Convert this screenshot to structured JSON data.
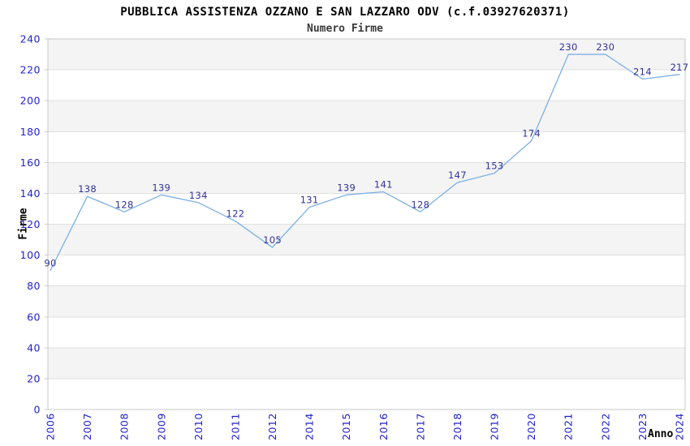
{
  "chart_data": {
    "type": "line",
    "title": "PUBBLICA ASSISTENZA OZZANO E SAN LAZZARO ODV (c.f.03927620371)",
    "subtitle": "Numero Firme",
    "xlabel": "Anno",
    "ylabel": "Firme",
    "categories": [
      "2006",
      "2007",
      "2008",
      "2009",
      "2010",
      "2011",
      "2012",
      "2014",
      "2015",
      "2016",
      "2017",
      "2018",
      "2019",
      "2020",
      "2021",
      "2022",
      "2023",
      "2024"
    ],
    "values": [
      90,
      138,
      128,
      139,
      134,
      122,
      105,
      131,
      139,
      141,
      128,
      147,
      153,
      174,
      230,
      230,
      214,
      217
    ],
    "ylim": [
      0,
      240
    ],
    "ytick_step": 20,
    "yticks": [
      0,
      20,
      40,
      60,
      80,
      100,
      120,
      140,
      160,
      180,
      200,
      220,
      240
    ],
    "grid": true,
    "legend_position": "none",
    "data_labels_visible": true,
    "colors": {
      "line": "#7cb0e4",
      "tick_label": "#2222cc",
      "data_label": "#333399",
      "band_fill": "#f4f4f4",
      "grid_line": "#e0e0e0",
      "plot_border": "#c9c9c9",
      "title_text": "#000000",
      "subtitle_text": "#3a3a3a"
    }
  }
}
